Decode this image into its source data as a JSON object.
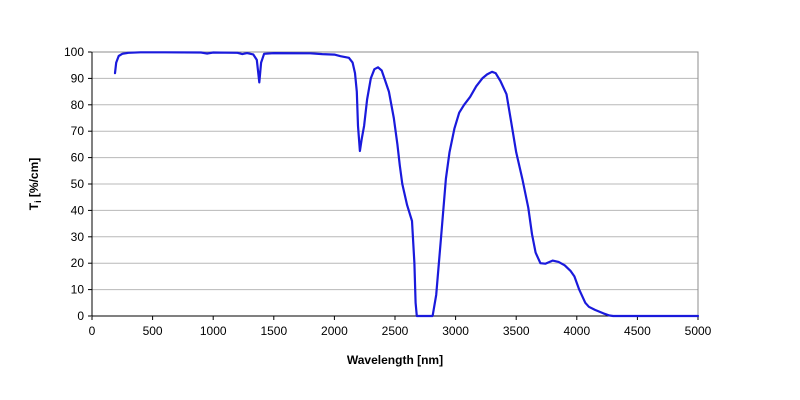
{
  "chart_data": {
    "type": "line",
    "title": "",
    "xlabel": "Wavelength [nm]",
    "ylabel": {
      "main": "T",
      "sub": "i",
      "rest": " [%/cm]"
    },
    "xlim": [
      0,
      5000
    ],
    "ylim": [
      0,
      100
    ],
    "xticks": [
      0,
      500,
      1000,
      1500,
      2000,
      2500,
      3000,
      3500,
      4000,
      4500,
      5000
    ],
    "yticks": [
      0,
      10,
      20,
      30,
      40,
      50,
      60,
      70,
      80,
      90,
      100
    ],
    "grid": "horizontal",
    "legend": "none",
    "series": [
      {
        "color": "#1a1adc",
        "points": [
          [
            190,
            92
          ],
          [
            200,
            96
          ],
          [
            220,
            98.5
          ],
          [
            250,
            99.3
          ],
          [
            300,
            99.7
          ],
          [
            400,
            99.9
          ],
          [
            600,
            99.9
          ],
          [
            900,
            99.8
          ],
          [
            950,
            99.4
          ],
          [
            1000,
            99.8
          ],
          [
            1200,
            99.7
          ],
          [
            1240,
            99.2
          ],
          [
            1280,
            99.6
          ],
          [
            1330,
            99.1
          ],
          [
            1360,
            97
          ],
          [
            1380,
            88.5
          ],
          [
            1395,
            96
          ],
          [
            1420,
            99.3
          ],
          [
            1500,
            99.6
          ],
          [
            1800,
            99.5
          ],
          [
            1900,
            99.2
          ],
          [
            2000,
            99
          ],
          [
            2050,
            98.4
          ],
          [
            2120,
            97.8
          ],
          [
            2150,
            96
          ],
          [
            2170,
            92
          ],
          [
            2185,
            85
          ],
          [
            2195,
            72
          ],
          [
            2210,
            62.5
          ],
          [
            2225,
            67
          ],
          [
            2245,
            72
          ],
          [
            2270,
            82
          ],
          [
            2300,
            90
          ],
          [
            2330,
            93.5
          ],
          [
            2360,
            94.2
          ],
          [
            2390,
            93
          ],
          [
            2420,
            89
          ],
          [
            2450,
            85
          ],
          [
            2490,
            75
          ],
          [
            2520,
            65
          ],
          [
            2540,
            57
          ],
          [
            2560,
            50
          ],
          [
            2600,
            42
          ],
          [
            2640,
            36
          ],
          [
            2660,
            20
          ],
          [
            2670,
            5
          ],
          [
            2680,
            0
          ],
          [
            2740,
            0
          ],
          [
            2810,
            0
          ],
          [
            2840,
            8
          ],
          [
            2880,
            30
          ],
          [
            2920,
            52
          ],
          [
            2950,
            62
          ],
          [
            2990,
            71
          ],
          [
            3030,
            77
          ],
          [
            3070,
            80
          ],
          [
            3120,
            83
          ],
          [
            3170,
            87
          ],
          [
            3220,
            90
          ],
          [
            3260,
            91.5
          ],
          [
            3300,
            92.5
          ],
          [
            3330,
            92
          ],
          [
            3370,
            89
          ],
          [
            3420,
            84
          ],
          [
            3460,
            73
          ],
          [
            3500,
            62
          ],
          [
            3550,
            52
          ],
          [
            3600,
            41
          ],
          [
            3630,
            31
          ],
          [
            3660,
            24
          ],
          [
            3700,
            20
          ],
          [
            3740,
            19.8
          ],
          [
            3800,
            21
          ],
          [
            3850,
            20.5
          ],
          [
            3900,
            19.2
          ],
          [
            3950,
            17
          ],
          [
            3980,
            15
          ],
          [
            4020,
            10
          ],
          [
            4070,
            5
          ],
          [
            4100,
            3.5
          ],
          [
            4150,
            2.3
          ],
          [
            4220,
            1
          ],
          [
            4270,
            0.2
          ],
          [
            4300,
            0
          ],
          [
            4500,
            0
          ],
          [
            5000,
            0
          ]
        ]
      }
    ]
  }
}
